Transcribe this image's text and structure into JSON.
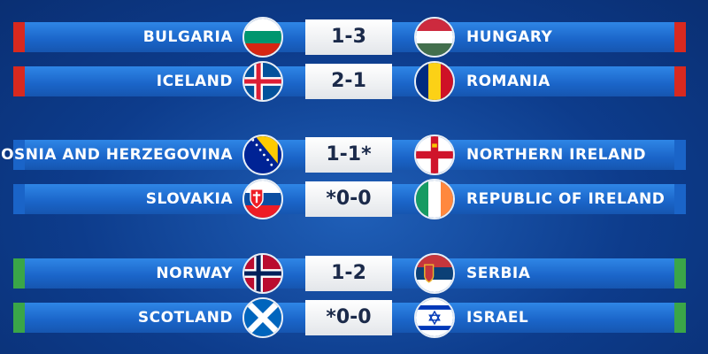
{
  "colors": {
    "group1": "#d8291f",
    "group2": "#1a64c8",
    "group3": "#3aa648"
  },
  "matches": [
    {
      "home": "BULGARIA",
      "score": "1-3",
      "away": "HUNGARY",
      "home_flag": "bulgaria-flag",
      "away_flag": "hungary-flag"
    },
    {
      "home": "ICELAND",
      "score": "2-1",
      "away": "ROMANIA",
      "home_flag": "iceland-flag",
      "away_flag": "romania-flag"
    },
    {
      "home": "BOSNIA AND HERZEGOVINA",
      "score": "1-1*",
      "away": "NORTHERN IRELAND",
      "home_flag": "bosnia-flag",
      "away_flag": "northern-ireland-flag"
    },
    {
      "home": "SLOVAKIA",
      "score": "*0-0",
      "away": "REPUBLIC OF IRELAND",
      "home_flag": "slovakia-flag",
      "away_flag": "ireland-flag"
    },
    {
      "home": "NORWAY",
      "score": "1-2",
      "away": "SERBIA",
      "home_flag": "norway-flag",
      "away_flag": "serbia-flag"
    },
    {
      "home": "SCOTLAND",
      "score": "*0-0",
      "away": "ISRAEL",
      "home_flag": "scotland-flag",
      "away_flag": "israel-flag"
    }
  ]
}
